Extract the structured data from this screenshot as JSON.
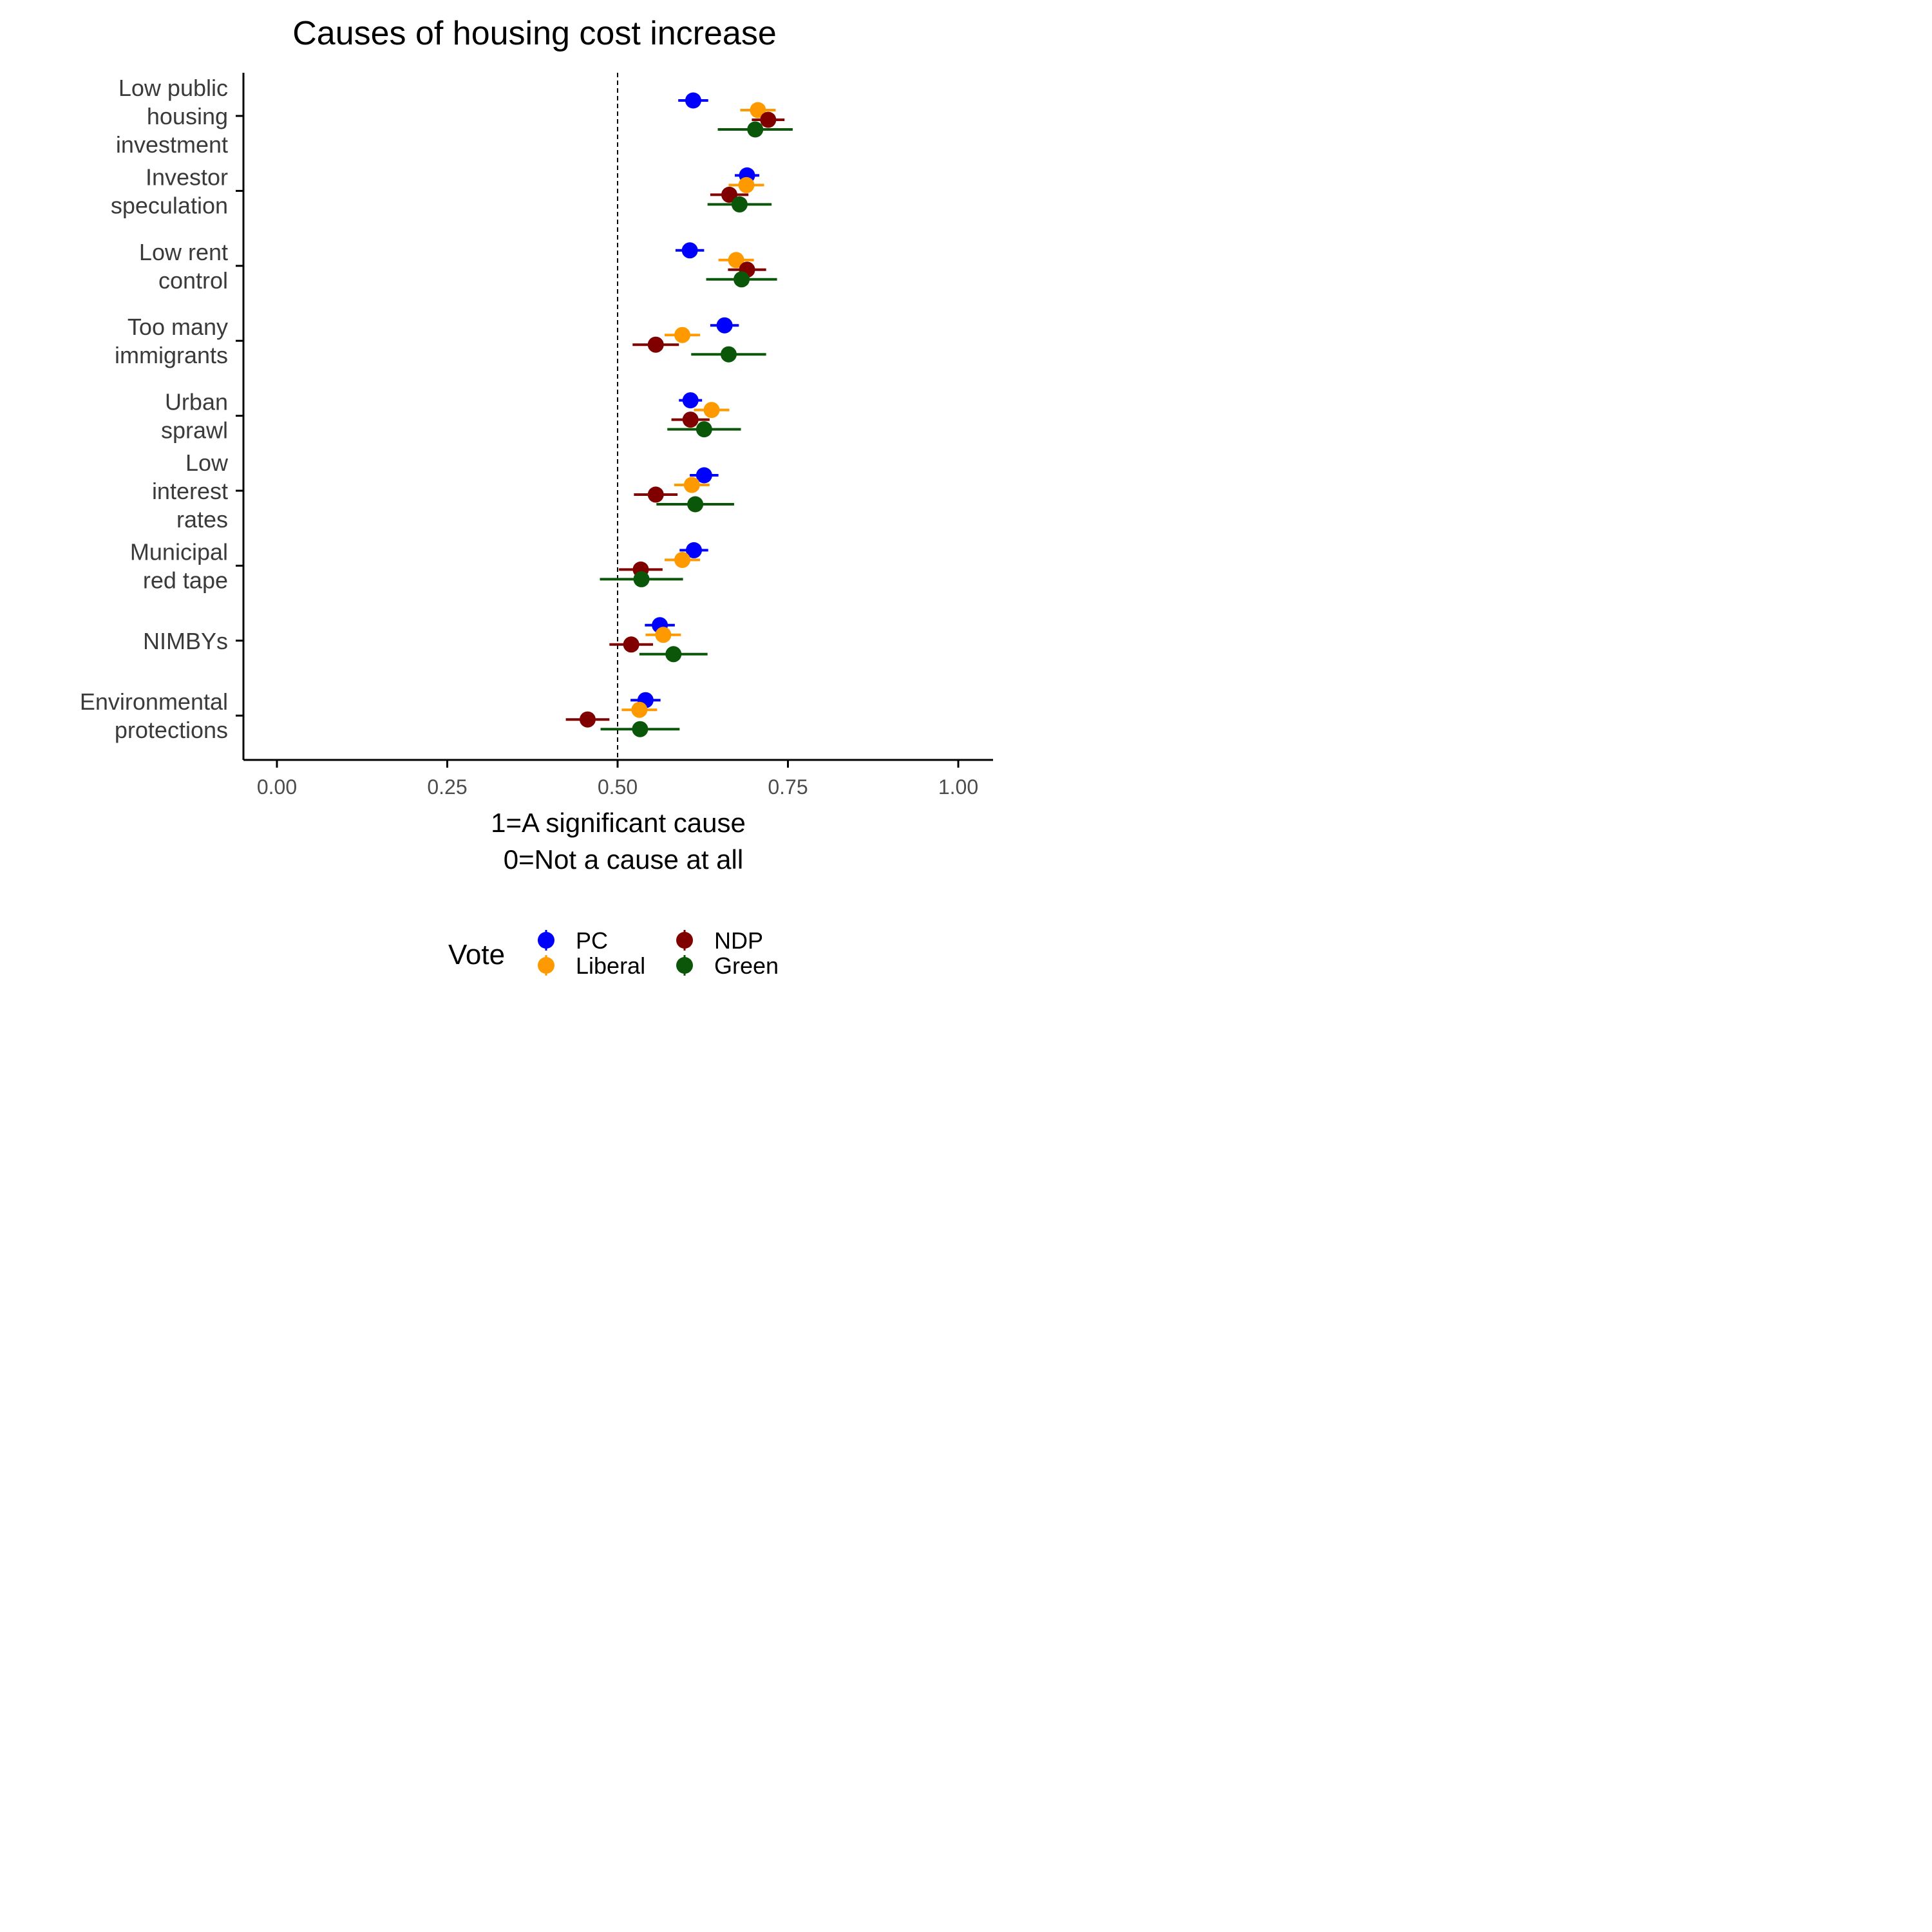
{
  "chart_data": {
    "type": "scatter",
    "title": "Causes of housing cost increase",
    "xlabel_lines": [
      "1=A significant cause",
      "0=Not a cause at all"
    ],
    "ylabel": "",
    "xlim": [
      -0.025,
      1.025
    ],
    "x_ticks": [
      0,
      0.25,
      0.5,
      0.75,
      1.0
    ],
    "x_tick_labels": [
      "0.00",
      "0.25",
      "0.50",
      "0.75",
      "1.00"
    ],
    "reference_line": {
      "x": 0.5,
      "style": "dashed"
    },
    "grid": false,
    "categories": [
      {
        "key": "low-public-housing-investment",
        "lines": [
          "Low public",
          "housing",
          "investment"
        ]
      },
      {
        "key": "investor-speculation",
        "lines": [
          "Investor",
          "speculation"
        ]
      },
      {
        "key": "low-rent-control",
        "lines": [
          "Low rent",
          "control"
        ]
      },
      {
        "key": "too-many-immigrants",
        "lines": [
          "Too many",
          "immigrants"
        ]
      },
      {
        "key": "urban-sprawl",
        "lines": [
          "Urban",
          "sprawl"
        ]
      },
      {
        "key": "low-interest-rates",
        "lines": [
          "Low",
          "interest",
          "rates"
        ]
      },
      {
        "key": "municipal-red-tape",
        "lines": [
          "Municipal",
          "red tape"
        ]
      },
      {
        "key": "nimbys",
        "lines": [
          "NIMBYs"
        ]
      },
      {
        "key": "environmental-protections",
        "lines": [
          "Environmental",
          "protections"
        ]
      }
    ],
    "legend": {
      "title": "Vote",
      "position": "bottom"
    },
    "series": [
      {
        "name": "PC",
        "color": "#0000FF",
        "values": [
          0.611,
          0.69,
          0.606,
          0.657,
          0.607,
          0.627,
          0.612,
          0.562,
          0.541
        ],
        "lower": [
          0.589,
          0.672,
          0.585,
          0.636,
          0.59,
          0.606,
          0.591,
          0.54,
          0.519
        ],
        "upper": [
          0.633,
          0.708,
          0.627,
          0.678,
          0.624,
          0.648,
          0.633,
          0.584,
          0.563
        ]
      },
      {
        "name": "Liberal",
        "color": "#FF9900",
        "values": [
          0.706,
          0.689,
          0.674,
          0.595,
          0.638,
          0.609,
          0.595,
          0.567,
          0.532
        ],
        "lower": [
          0.68,
          0.663,
          0.648,
          0.569,
          0.612,
          0.583,
          0.569,
          0.541,
          0.506
        ],
        "upper": [
          0.732,
          0.715,
          0.7,
          0.621,
          0.664,
          0.635,
          0.621,
          0.593,
          0.558
        ]
      },
      {
        "name": "NDP",
        "color": "#800000",
        "values": [
          0.721,
          0.664,
          0.69,
          0.556,
          0.607,
          0.556,
          0.534,
          0.52,
          0.456
        ],
        "lower": [
          0.697,
          0.636,
          0.662,
          0.522,
          0.579,
          0.524,
          0.502,
          0.488,
          0.424
        ],
        "upper": [
          0.745,
          0.692,
          0.718,
          0.59,
          0.635,
          0.588,
          0.566,
          0.552,
          0.488
        ]
      },
      {
        "name": "Green",
        "color": "#0A570A",
        "values": [
          0.702,
          0.679,
          0.682,
          0.663,
          0.627,
          0.614,
          0.535,
          0.582,
          0.533
        ],
        "lower": [
          0.647,
          0.632,
          0.63,
          0.608,
          0.573,
          0.557,
          0.474,
          0.532,
          0.475
        ],
        "upper": [
          0.757,
          0.726,
          0.734,
          0.718,
          0.681,
          0.671,
          0.596,
          0.632,
          0.591
        ]
      }
    ]
  }
}
